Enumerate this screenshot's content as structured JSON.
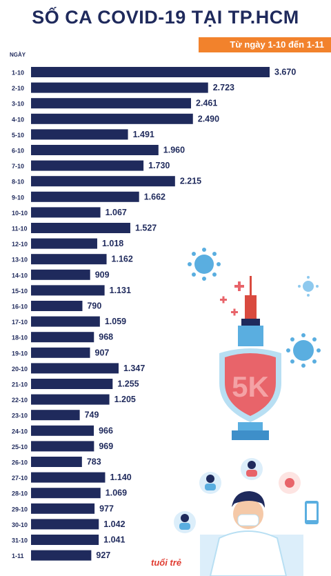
{
  "header": {
    "title": "SỐ CA COVID-19 TẠI TP.HCM",
    "subtitle": "Từ ngày 1-10 đến 1-11",
    "axis_label": "NGÀY"
  },
  "colors": {
    "bar": "#1f2a5c",
    "text": "#1f2a5c",
    "accent": "#f2822c",
    "virus": "#5aaee0",
    "shield": "#e8646a",
    "syringe": "#d94a3f"
  },
  "decoration": {
    "shield_text": "5K",
    "logo_text": "tuổi trẻ"
  },
  "chart_data": {
    "type": "bar",
    "orientation": "horizontal",
    "title": "SỐ CA COVID-19 TẠI TP.HCM",
    "subtitle": "Từ ngày 1-10 đến 1-11",
    "ylabel": "NGÀY",
    "grid": false,
    "categories": [
      "1-10",
      "2-10",
      "3-10",
      "4-10",
      "5-10",
      "6-10",
      "7-10",
      "8-10",
      "9-10",
      "10-10",
      "11-10",
      "12-10",
      "13-10",
      "14-10",
      "15-10",
      "16-10",
      "17-10",
      "18-10",
      "19-10",
      "20-10",
      "21-10",
      "22-10",
      "23-10",
      "24-10",
      "25-10",
      "26-10",
      "27-10",
      "28-10",
      "29-10",
      "30-10",
      "31-10",
      "1-11"
    ],
    "values": [
      3670,
      2723,
      2461,
      2490,
      1491,
      1960,
      1730,
      2215,
      1662,
      1067,
      1527,
      1018,
      1162,
      909,
      1131,
      790,
      1059,
      968,
      907,
      1347,
      1255,
      1205,
      749,
      966,
      969,
      783,
      1140,
      1069,
      977,
      1042,
      1041,
      927
    ],
    "labels": [
      "3.670",
      "2.723",
      "2.461",
      "2.490",
      "1.491",
      "1.960",
      "1.730",
      "2.215",
      "1.662",
      "1.067",
      "1.527",
      "1.018",
      "1.162",
      "909",
      "1.131",
      "790",
      "1.059",
      "968",
      "907",
      "1.347",
      "1.255",
      "1.205",
      "749",
      "966",
      "969",
      "783",
      "1.140",
      "1.069",
      "977",
      "1.042",
      "1.041",
      "927"
    ],
    "xlim": [
      0,
      3670
    ]
  }
}
